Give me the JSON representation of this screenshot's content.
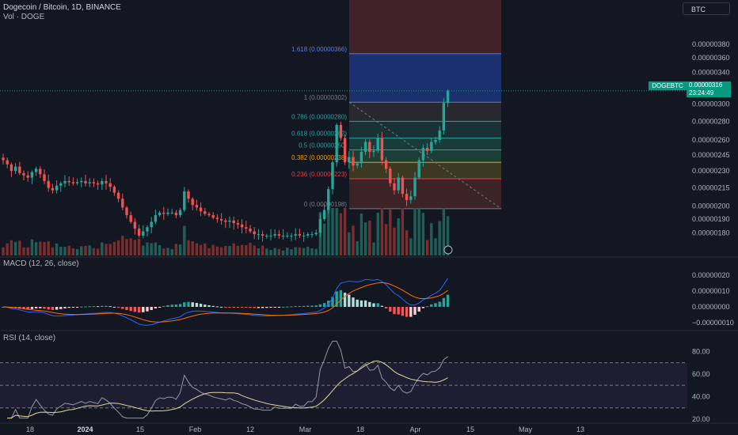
{
  "header": {
    "title": "Dogecoin / Bitcoin, 1D, BINANCE",
    "volume_label": "Vol · DOGE",
    "macd_label": "MACD (12, 26, close)",
    "rsi_label": "RSI (14, close)"
  },
  "currency_selector": "BTC",
  "last_price": {
    "symbol": "DOGEBTC",
    "value": "0.00000316",
    "countdown": "23:24:49"
  },
  "colors": {
    "background": "#131722",
    "up": "#26a69a",
    "down": "#ef5350",
    "macd_line": "#2962ff",
    "signal_line": "#ff6d00",
    "rsi_line": "#7e57c2"
  },
  "chart_data": [
    {
      "type": "candlestick",
      "symbol": "DOGEBTC",
      "exchange": "BINANCE",
      "interval": "1D",
      "y_scale": "log",
      "ylim": [
        1.73e-06,
        4.32e-06
      ],
      "y_ticks": [
        "0.00000380",
        "0.00000360",
        "0.00000340",
        "0.00000320",
        "0.00000300",
        "0.00000280",
        "0.00000260",
        "0.00000245",
        "0.00000230",
        "0.00000215",
        "0.00000200",
        "0.00000190",
        "0.00000180"
      ],
      "x_ticks": [
        "18",
        "2024",
        "15",
        "Feb",
        "12",
        "Mar",
        "18",
        "Apr",
        "15",
        "May",
        "13"
      ],
      "date_range": [
        "2023-12-11",
        "2024-03-26"
      ],
      "close": [
        2.4e-06,
        2.36e-06,
        2.3e-06,
        2.34e-06,
        2.28e-06,
        2.26e-06,
        2.24e-06,
        2.29e-06,
        2.32e-06,
        2.27e-06,
        2.21e-06,
        2.15e-06,
        2.13e-06,
        2.17e-06,
        2.19e-06,
        2.21e-06,
        2.2e-06,
        2.19e-06,
        2.2e-06,
        2.21e-06,
        2.19e-06,
        2.2e-06,
        2.19e-06,
        2.18e-06,
        2.21e-06,
        2.19e-06,
        2.16e-06,
        2.11e-06,
        2.06e-06,
        1.99e-06,
        1.93e-06,
        1.88e-06,
        1.83e-06,
        1.78e-06,
        1.81e-06,
        1.84e-06,
        1.88e-06,
        1.93e-06,
        1.95e-06,
        1.94e-06,
        1.95e-06,
        1.95e-06,
        1.93e-06,
        1.97e-06,
        2.12e-06,
        2.06e-06,
        2.01e-06,
        1.99e-06,
        1.96e-06,
        1.94e-06,
        1.93e-06,
        1.91e-06,
        1.9e-06,
        1.89e-06,
        1.88e-06,
        1.89e-06,
        1.87e-06,
        1.86e-06,
        1.84e-06,
        1.83e-06,
        1.81e-06,
        1.79e-06,
        1.79e-06,
        1.78e-06,
        1.78e-06,
        1.78e-06,
        1.79e-06,
        1.78e-06,
        1.78e-06,
        1.78e-06,
        1.78e-06,
        1.79e-06,
        1.78e-06,
        1.78e-06,
        1.79e-06,
        1.79e-06,
        1.8e-06,
        1.9e-06,
        1.97e-06,
        2.14e-06,
        2.38e-06,
        2.76e-06,
        2.62e-06,
        2.38e-06,
        2.43e-06,
        2.35e-06,
        2.37e-06,
        2.48e-06,
        2.58e-06,
        2.48e-06,
        2.49e-06,
        2.62e-06,
        2.4e-06,
        2.32e-06,
        2.19e-06,
        2.13e-06,
        2.24e-06,
        2.1e-06,
        2.05e-06,
        2.08e-06,
        2.24e-06,
        2.4e-06,
        2.52e-06,
        2.49e-06,
        2.58e-06,
        2.6e-06,
        2.7e-06,
        3.01e-06,
        3.16e-06
      ],
      "volume_units": "DOGE, relative (no volume axis shown)",
      "last": "0.00000316"
    },
    {
      "type": "line",
      "name": "Fibonacci retracement",
      "levels": [
        {
          "ratio": "1.618",
          "price": "0.00000366",
          "label": "1.618 (0.00000366)",
          "color": "#5b7ce6"
        },
        {
          "ratio": "1",
          "price": "0.00000302",
          "label": "1 (0.00000302)",
          "color": "#787b86"
        },
        {
          "ratio": "0.786",
          "price": "0.00000280",
          "label": "0.786 (0.00000280)",
          "color": "#26a69a"
        },
        {
          "ratio": "0.618",
          "price": "0.00000262",
          "label": "0.618 (0.00000262)",
          "color": "#26a69a"
        },
        {
          "ratio": "0.5",
          "price": "0.00000250",
          "label": "0.5 (0.00000250)",
          "color": "#26a69a"
        },
        {
          "ratio": "0.382",
          "price": "0.00000238",
          "label": "0.382 (0.00000238)",
          "color": "#ff9800"
        },
        {
          "ratio": "0.236",
          "price": "0.00000223",
          "label": "0.236 (0.00000223)",
          "color": "#f23645"
        },
        {
          "ratio": "0",
          "price": "0.00000198",
          "label": "0 (0.00000198)",
          "color": "#787b86"
        }
      ],
      "upper_zone_top_ratio": "2.618"
    },
    {
      "type": "line",
      "name": "MACD (12, 26, close)",
      "ylim": [
        -1.2e-07,
        2.4e-07
      ],
      "y_ticks": [
        "0.00000020",
        "0.00000010",
        "0.00000000",
        "−0.00000010"
      ]
    },
    {
      "type": "line",
      "name": "RSI (14, close)",
      "ylim": [
        20,
        90
      ],
      "y_ticks": [
        "80.00",
        "60.00",
        "40.00",
        "20.00"
      ],
      "bands": {
        "upper": 70,
        "middle": 50,
        "lower": 30
      }
    }
  ]
}
